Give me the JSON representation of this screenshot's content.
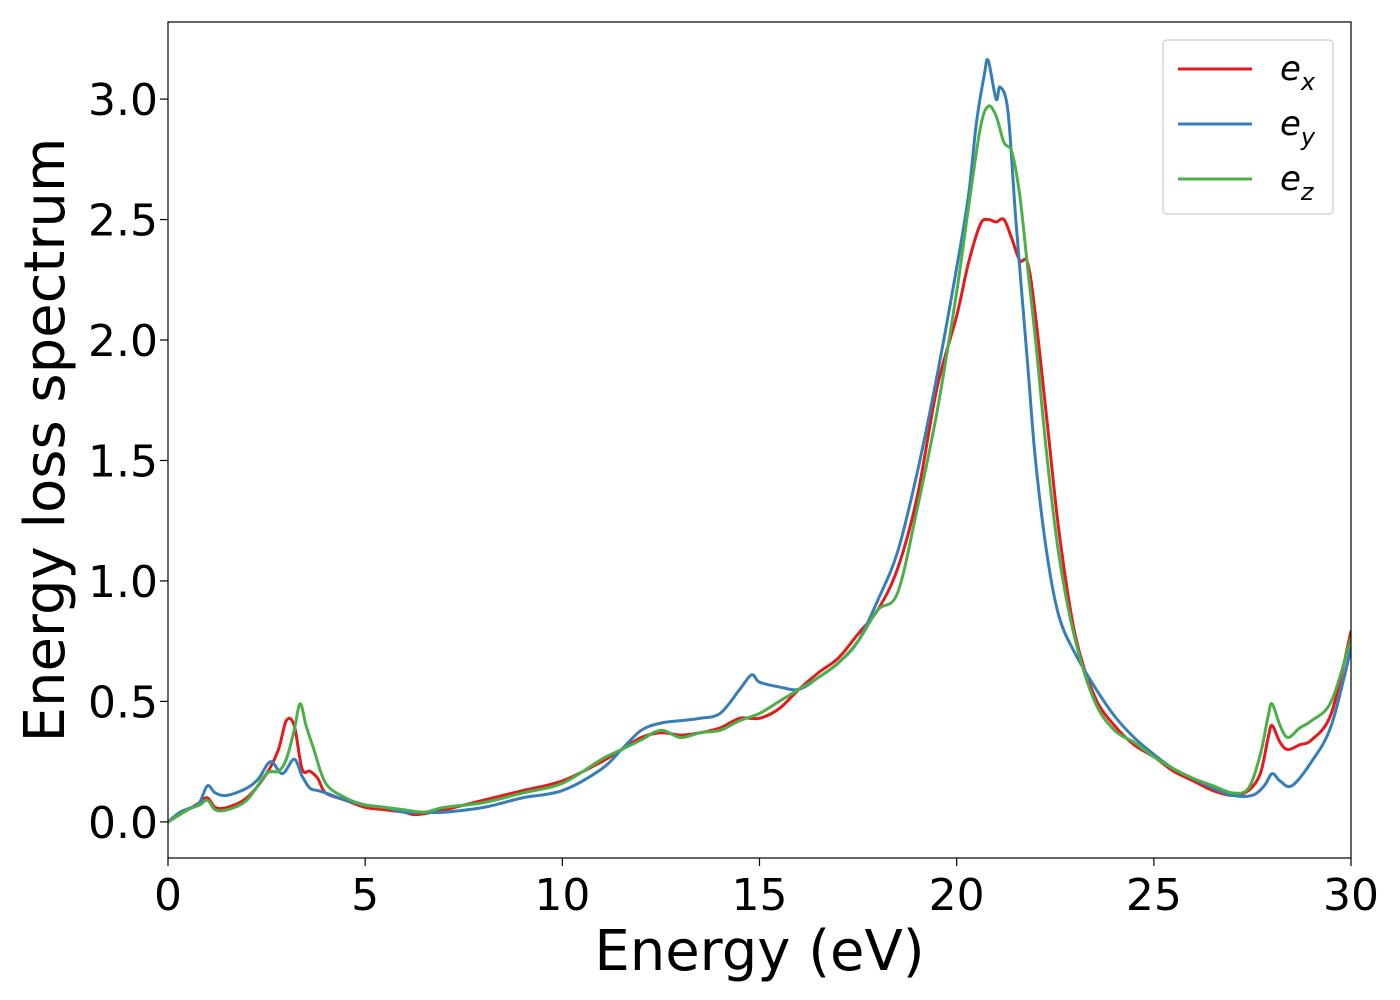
{
  "chart_data": {
    "type": "line",
    "xlabel": "Energy (eV)",
    "ylabel": "Energy loss spectrum",
    "xlim": [
      0,
      30
    ],
    "ylim": [
      -0.15,
      3.32
    ],
    "xticks": [
      0,
      5,
      10,
      15,
      20,
      25,
      30
    ],
    "xtick_labels": [
      "0",
      "5",
      "10",
      "15",
      "20",
      "25",
      "30"
    ],
    "yticks": [
      0.0,
      0.5,
      1.0,
      1.5,
      2.0,
      2.5,
      3.0
    ],
    "ytick_labels": [
      "0.0",
      "0.5",
      "1.0",
      "1.5",
      "2.0",
      "2.5",
      "3.0"
    ],
    "grid": false,
    "legend_position": "top-right",
    "series": [
      {
        "name": "e_x",
        "label_base": "e",
        "label_sub": "x",
        "color": "#e41a1c",
        "x": [
          0,
          0.5,
          0.8,
          1.0,
          1.2,
          1.5,
          2.0,
          2.5,
          2.8,
          3.0,
          3.2,
          3.4,
          3.6,
          3.8,
          4.0,
          4.5,
          5.0,
          5.5,
          6.0,
          6.3,
          7.0,
          8.0,
          9.0,
          10.0,
          11.0,
          11.5,
          12.0,
          12.5,
          13.0,
          13.5,
          14.0,
          14.5,
          15.0,
          15.5,
          16.0,
          16.5,
          17.0,
          17.5,
          18.0,
          18.5,
          19.0,
          19.5,
          20.0,
          20.3,
          20.6,
          20.8,
          21.0,
          21.2,
          21.4,
          21.6,
          21.8,
          22.0,
          22.3,
          22.6,
          23.0,
          23.5,
          24.0,
          24.5,
          25.0,
          25.5,
          26.0,
          26.5,
          27.0,
          27.4,
          27.7,
          27.9,
          28.0,
          28.2,
          28.4,
          28.7,
          29.0,
          29.5,
          30.0
        ],
        "y": [
          0.0,
          0.05,
          0.08,
          0.1,
          0.06,
          0.06,
          0.1,
          0.2,
          0.3,
          0.42,
          0.4,
          0.22,
          0.21,
          0.18,
          0.12,
          0.09,
          0.06,
          0.05,
          0.04,
          0.03,
          0.05,
          0.09,
          0.13,
          0.17,
          0.25,
          0.3,
          0.35,
          0.37,
          0.36,
          0.37,
          0.39,
          0.43,
          0.43,
          0.47,
          0.55,
          0.62,
          0.68,
          0.78,
          0.88,
          1.05,
          1.35,
          1.8,
          2.1,
          2.32,
          2.48,
          2.5,
          2.49,
          2.5,
          2.42,
          2.33,
          2.32,
          2.1,
          1.65,
          1.2,
          0.78,
          0.52,
          0.4,
          0.32,
          0.27,
          0.21,
          0.17,
          0.13,
          0.11,
          0.13,
          0.2,
          0.35,
          0.4,
          0.33,
          0.3,
          0.32,
          0.34,
          0.45,
          0.79
        ]
      },
      {
        "name": "e_y",
        "label_base": "e",
        "label_sub": "y",
        "color": "#377eb8",
        "x": [
          0,
          0.3,
          0.6,
          0.8,
          1.0,
          1.2,
          1.5,
          2.0,
          2.3,
          2.6,
          2.9,
          3.2,
          3.4,
          3.6,
          3.8,
          4.0,
          4.5,
          5.0,
          5.5,
          6.0,
          6.5,
          7.0,
          8.0,
          9.0,
          10.0,
          11.0,
          11.5,
          12.0,
          12.5,
          13.0,
          13.5,
          14.0,
          14.5,
          14.8,
          15.0,
          15.5,
          16.0,
          16.5,
          17.0,
          17.5,
          18.0,
          18.5,
          19.0,
          19.5,
          20.0,
          20.3,
          20.5,
          20.7,
          20.8,
          21.0,
          21.1,
          21.3,
          21.5,
          21.8,
          22.0,
          22.3,
          22.6,
          23.0,
          23.5,
          24.0,
          24.5,
          25.0,
          25.5,
          26.0,
          26.5,
          27.0,
          27.5,
          27.8,
          28.0,
          28.2,
          28.5,
          29.0,
          29.5,
          30.0
        ],
        "y": [
          0.0,
          0.04,
          0.06,
          0.08,
          0.15,
          0.12,
          0.11,
          0.14,
          0.18,
          0.25,
          0.2,
          0.26,
          0.19,
          0.14,
          0.13,
          0.12,
          0.09,
          0.07,
          0.06,
          0.04,
          0.04,
          0.04,
          0.06,
          0.1,
          0.13,
          0.22,
          0.3,
          0.38,
          0.41,
          0.42,
          0.43,
          0.45,
          0.55,
          0.61,
          0.58,
          0.56,
          0.55,
          0.6,
          0.66,
          0.75,
          0.92,
          1.12,
          1.45,
          1.85,
          2.3,
          2.6,
          2.9,
          3.1,
          3.16,
          3.0,
          3.05,
          2.95,
          2.5,
          1.9,
          1.5,
          1.1,
          0.85,
          0.7,
          0.56,
          0.44,
          0.35,
          0.28,
          0.22,
          0.18,
          0.14,
          0.11,
          0.11,
          0.15,
          0.2,
          0.17,
          0.15,
          0.25,
          0.4,
          0.72
        ]
      },
      {
        "name": "e_z",
        "label_base": "e",
        "label_sub": "z",
        "color": "#4daf4a",
        "x": [
          0,
          0.5,
          0.8,
          1.0,
          1.2,
          1.5,
          2.0,
          2.5,
          2.8,
          3.0,
          3.2,
          3.35,
          3.5,
          3.7,
          4.0,
          4.5,
          5.0,
          5.5,
          6.0,
          6.5,
          7.0,
          8.0,
          9.0,
          10.0,
          11.0,
          11.5,
          12.0,
          12.5,
          13.0,
          13.5,
          14.0,
          14.5,
          15.0,
          15.5,
          16.0,
          16.5,
          17.0,
          17.5,
          18.0,
          18.5,
          19.0,
          19.5,
          20.0,
          20.3,
          20.6,
          20.8,
          21.0,
          21.2,
          21.4,
          21.6,
          21.8,
          22.0,
          22.3,
          22.6,
          23.0,
          23.5,
          24.0,
          24.5,
          25.0,
          25.5,
          26.0,
          26.5,
          27.0,
          27.4,
          27.7,
          27.9,
          28.0,
          28.2,
          28.4,
          28.7,
          29.0,
          29.5,
          30.0
        ],
        "y": [
          0.0,
          0.05,
          0.07,
          0.09,
          0.05,
          0.05,
          0.09,
          0.2,
          0.21,
          0.26,
          0.38,
          0.49,
          0.4,
          0.3,
          0.16,
          0.1,
          0.07,
          0.06,
          0.05,
          0.04,
          0.06,
          0.08,
          0.12,
          0.16,
          0.26,
          0.3,
          0.34,
          0.38,
          0.35,
          0.37,
          0.38,
          0.42,
          0.45,
          0.5,
          0.55,
          0.6,
          0.66,
          0.75,
          0.88,
          0.95,
          1.3,
          1.7,
          2.2,
          2.55,
          2.88,
          2.97,
          2.93,
          2.82,
          2.78,
          2.6,
          2.3,
          2.0,
          1.5,
          1.1,
          0.76,
          0.5,
          0.38,
          0.33,
          0.27,
          0.22,
          0.18,
          0.15,
          0.12,
          0.14,
          0.28,
          0.44,
          0.49,
          0.4,
          0.35,
          0.39,
          0.42,
          0.5,
          0.76
        ]
      }
    ]
  }
}
